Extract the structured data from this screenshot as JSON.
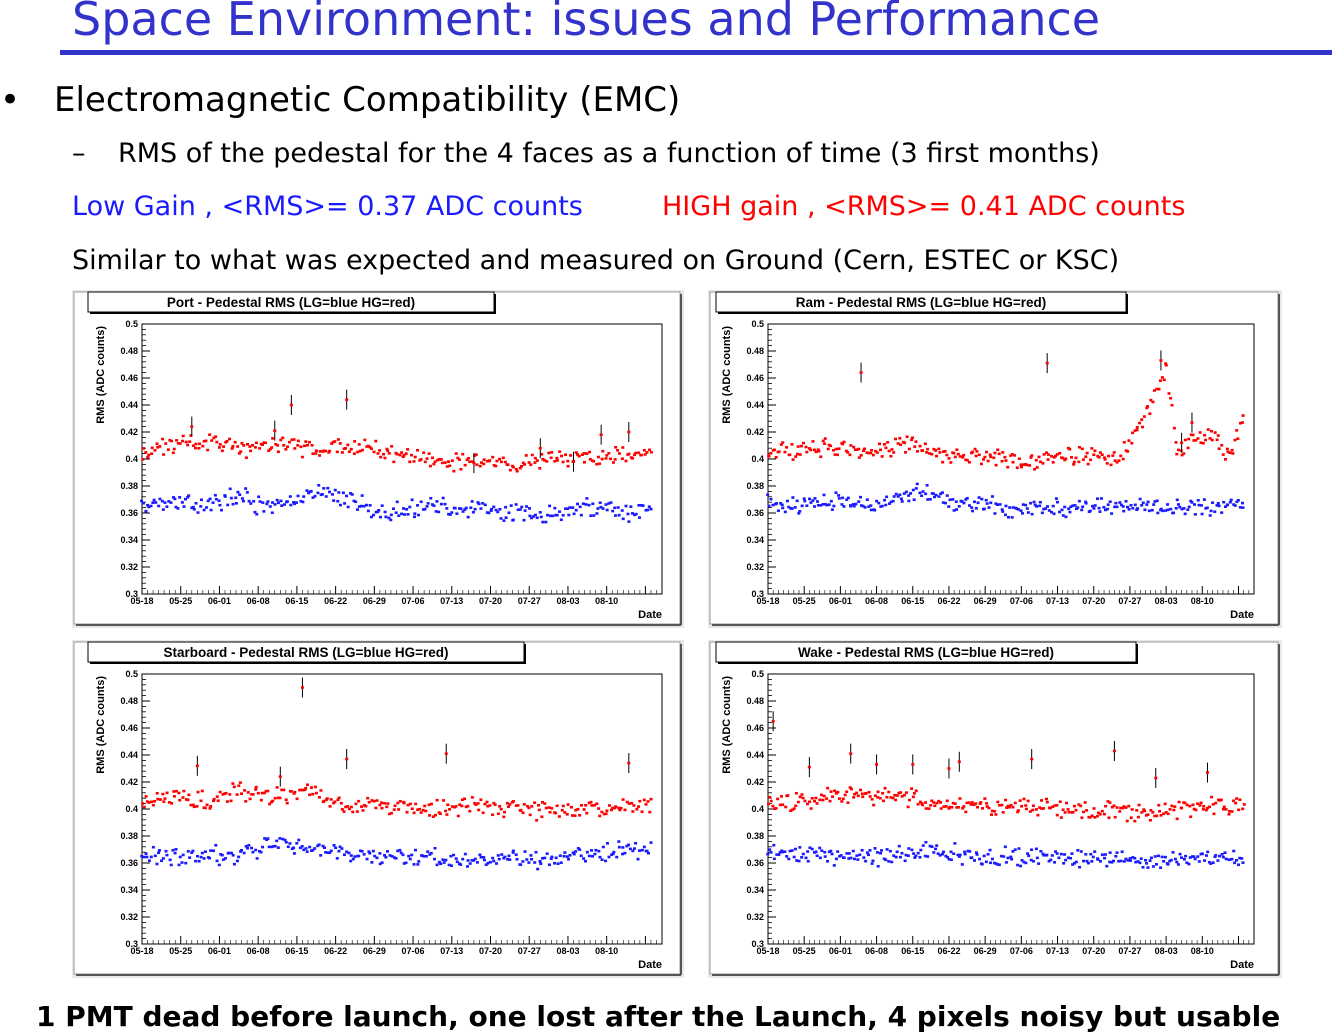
{
  "header": {
    "title": "Space Environment: issues and Performance",
    "bullet_heading": "Electromagnetic Compatibility (EMC)",
    "dash": "–",
    "subtitle": "RMS of the pedestal for the 4 faces as a function of time (3 first months)",
    "low_gain": "Low Gain , <RMS>= 0.37 ADC counts",
    "high_gain": "HIGH gain , <RMS>= 0.41 ADC counts",
    "similar": "Similar to what was expected and measured on Ground (Cern, ESTEC or KSC)"
  },
  "footer": "1 PMT dead before launch, one lost after the Launch, 4 pixels noisy but usable",
  "colors": {
    "title": "#3333cc",
    "low_gain": "#1a1aff",
    "high_gain": "#ff0000",
    "error_bar": "#000000"
  },
  "chart_data": [
    {
      "type": "scatter",
      "title": "Port - Pedestal RMS (LG=blue HG=red)",
      "xlabel": "Date",
      "ylabel": "RMS  (ADC counts)",
      "ylim": [
        0.3,
        0.5
      ],
      "y_ticks": [
        "0.3",
        "0.32",
        "0.34",
        "0.36",
        "0.38",
        "0.4",
        "0.42",
        "0.44",
        "0.46",
        "0.48",
        "0.5"
      ],
      "x_ticks": [
        "05-18",
        "05-25",
        "06-01",
        "06-08",
        "06-15",
        "06-22",
        "06-29",
        "07-06",
        "07-13",
        "07-20",
        "07-27",
        "08-03",
        "08-10"
      ],
      "series": [
        {
          "color": "#1a1aff",
          "anchors": [
            [
              0,
              0.366
            ],
            [
              5,
              0.368
            ],
            [
              10,
              0.365
            ],
            [
              15,
              0.37
            ],
            [
              18,
              0.373
            ],
            [
              22,
              0.362
            ],
            [
              27,
              0.368
            ],
            [
              32,
              0.376
            ],
            [
              38,
              0.369
            ],
            [
              44,
              0.358
            ],
            [
              52,
              0.367
            ],
            [
              58,
              0.362
            ],
            [
              66,
              0.361
            ],
            [
              72,
              0.359
            ],
            [
              78,
              0.362
            ],
            [
              83,
              0.366
            ],
            [
              88,
              0.358
            ],
            [
              92,
              0.368
            ]
          ]
        },
        {
          "color": "#ff0000",
          "anchors": [
            [
              0,
              0.406
            ],
            [
              8,
              0.412
            ],
            [
              15,
              0.411
            ],
            [
              20,
              0.408
            ],
            [
              26,
              0.41
            ],
            [
              32,
              0.407
            ],
            [
              38,
              0.409
            ],
            [
              44,
              0.405
            ],
            [
              50,
              0.402
            ],
            [
              56,
              0.397
            ],
            [
              62,
              0.399
            ],
            [
              68,
              0.396
            ],
            [
              74,
              0.401
            ],
            [
              80,
              0.401
            ],
            [
              86,
              0.403
            ],
            [
              92,
              0.404
            ]
          ]
        }
      ],
      "outliers": [
        [
          9,
          0.424
        ],
        [
          24,
          0.421
        ],
        [
          27,
          0.44
        ],
        [
          37,
          0.444
        ],
        [
          60,
          0.397
        ],
        [
          72,
          0.408
        ],
        [
          78,
          0.398
        ],
        [
          83,
          0.418
        ],
        [
          88,
          0.42
        ]
      ]
    },
    {
      "type": "scatter",
      "title": "Ram - Pedestal RMS (LG=blue HG=red)",
      "xlabel": "Date",
      "ylabel": "RMS  (ADC counts)",
      "ylim": [
        0.3,
        0.5
      ],
      "y_ticks": [
        "0.3",
        "0.32",
        "0.34",
        "0.36",
        "0.38",
        "0.4",
        "0.42",
        "0.44",
        "0.46",
        "0.48",
        "0.5"
      ],
      "x_ticks": [
        "05-18",
        "05-25",
        "06-01",
        "06-08",
        "06-15",
        "06-22",
        "06-29",
        "07-06",
        "07-13",
        "07-20",
        "07-27",
        "08-03",
        "08-10"
      ],
      "series": [
        {
          "color": "#1a1aff",
          "anchors": [
            [
              0,
              0.368
            ],
            [
              5,
              0.364
            ],
            [
              10,
              0.367
            ],
            [
              15,
              0.37
            ],
            [
              20,
              0.365
            ],
            [
              26,
              0.372
            ],
            [
              30,
              0.377
            ],
            [
              36,
              0.367
            ],
            [
              42,
              0.368
            ],
            [
              48,
              0.363
            ],
            [
              54,
              0.364
            ],
            [
              60,
              0.363
            ],
            [
              66,
              0.366
            ],
            [
              72,
              0.364
            ],
            [
              78,
              0.364
            ],
            [
              84,
              0.365
            ],
            [
              92,
              0.367
            ]
          ]
        },
        {
          "color": "#ff0000",
          "anchors": [
            [
              0,
              0.406
            ],
            [
              8,
              0.408
            ],
            [
              14,
              0.41
            ],
            [
              20,
              0.406
            ],
            [
              26,
              0.411
            ],
            [
              32,
              0.405
            ],
            [
              38,
              0.402
            ],
            [
              44,
              0.403
            ],
            [
              50,
              0.398
            ],
            [
              56,
              0.402
            ],
            [
              62,
              0.403
            ],
            [
              68,
              0.4
            ],
            [
              70,
              0.412
            ],
            [
              72,
              0.425
            ],
            [
              74,
              0.44
            ],
            [
              76,
              0.458
            ],
            [
              77,
              0.466
            ],
            [
              78,
              0.44
            ],
            [
              79,
              0.405
            ],
            [
              82,
              0.414
            ],
            [
              86,
              0.418
            ],
            [
              89,
              0.402
            ],
            [
              92,
              0.43
            ]
          ]
        }
      ],
      "outliers": [
        [
          18,
          0.464
        ],
        [
          54,
          0.471
        ],
        [
          76,
          0.473
        ],
        [
          80,
          0.412
        ],
        [
          82,
          0.427
        ]
      ]
    },
    {
      "type": "scatter",
      "title": "Starboard - Pedestal RMS (LG=blue HG=red)",
      "xlabel": "Date",
      "ylabel": "RMS (ADC counts)",
      "ylim": [
        0.3,
        0.5
      ],
      "y_ticks": [
        "0.3",
        "0.32",
        "0.34",
        "0.36",
        "0.38",
        "0.4",
        "0.42",
        "0.44",
        "0.46",
        "0.48",
        "0.5"
      ],
      "x_ticks": [
        "05-18",
        "05-25",
        "06-01",
        "06-08",
        "06-15",
        "06-22",
        "06-29",
        "07-06",
        "07-13",
        "07-20",
        "07-27",
        "08-03",
        "08-10"
      ],
      "series": [
        {
          "color": "#1a1aff",
          "anchors": [
            [
              0,
              0.367
            ],
            [
              6,
              0.364
            ],
            [
              12,
              0.366
            ],
            [
              17,
              0.365
            ],
            [
              22,
              0.372
            ],
            [
              28,
              0.374
            ],
            [
              33,
              0.37
            ],
            [
              38,
              0.364
            ],
            [
              44,
              0.366
            ],
            [
              50,
              0.365
            ],
            [
              56,
              0.362
            ],
            [
              62,
              0.363
            ],
            [
              68,
              0.364
            ],
            [
              72,
              0.36
            ],
            [
              78,
              0.366
            ],
            [
              84,
              0.368
            ],
            [
              92,
              0.37
            ]
          ]
        },
        {
          "color": "#ff0000",
          "anchors": [
            [
              0,
              0.405
            ],
            [
              6,
              0.409
            ],
            [
              12,
              0.406
            ],
            [
              18,
              0.413
            ],
            [
              24,
              0.41
            ],
            [
              30,
              0.412
            ],
            [
              36,
              0.405
            ],
            [
              42,
              0.403
            ],
            [
              48,
              0.403
            ],
            [
              54,
              0.4
            ],
            [
              60,
              0.402
            ],
            [
              66,
              0.401
            ],
            [
              72,
              0.398
            ],
            [
              78,
              0.399
            ],
            [
              84,
              0.402
            ],
            [
              92,
              0.402
            ]
          ]
        }
      ],
      "outliers": [
        [
          10,
          0.432
        ],
        [
          25,
          0.424
        ],
        [
          29,
          0.49
        ],
        [
          37,
          0.437
        ],
        [
          55,
          0.441
        ],
        [
          88,
          0.434
        ]
      ]
    },
    {
      "type": "scatter",
      "title": "Wake - Pedestal RMS (LG=blue HG=red)",
      "xlabel": "Date",
      "ylabel": "RMS  (ADC counts)",
      "ylim": [
        0.3,
        0.5
      ],
      "y_ticks": [
        "0.3",
        "0.32",
        "0.34",
        "0.36",
        "0.38",
        "0.4",
        "0.42",
        "0.44",
        "0.46",
        "0.48",
        "0.5"
      ],
      "x_ticks": [
        "05-18",
        "05-25",
        "06-01",
        "06-08",
        "06-15",
        "06-22",
        "06-29",
        "07-06",
        "07-13",
        "07-20",
        "07-27",
        "08-03",
        "08-10"
      ],
      "series": [
        {
          "color": "#1a1aff",
          "anchors": [
            [
              0,
              0.366
            ],
            [
              6,
              0.366
            ],
            [
              12,
              0.364
            ],
            [
              18,
              0.366
            ],
            [
              24,
              0.364
            ],
            [
              30,
              0.37
            ],
            [
              36,
              0.367
            ],
            [
              42,
              0.363
            ],
            [
              48,
              0.365
            ],
            [
              54,
              0.364
            ],
            [
              60,
              0.362
            ],
            [
              66,
              0.363
            ],
            [
              72,
              0.36
            ],
            [
              78,
              0.363
            ],
            [
              84,
              0.364
            ],
            [
              92,
              0.363
            ]
          ]
        },
        {
          "color": "#ff0000",
          "anchors": [
            [
              0,
              0.402
            ],
            [
              6,
              0.406
            ],
            [
              12,
              0.409
            ],
            [
              18,
              0.41
            ],
            [
              24,
              0.41
            ],
            [
              30,
              0.406
            ],
            [
              36,
              0.403
            ],
            [
              42,
              0.401
            ],
            [
              48,
              0.402
            ],
            [
              54,
              0.401
            ],
            [
              60,
              0.4
            ],
            [
              66,
              0.398
            ],
            [
              72,
              0.397
            ],
            [
              78,
              0.399
            ],
            [
              84,
              0.402
            ],
            [
              92,
              0.402
            ]
          ]
        }
      ],
      "outliers": [
        [
          1,
          0.465
        ],
        [
          8,
          0.431
        ],
        [
          16,
          0.441
        ],
        [
          21,
          0.433
        ],
        [
          28,
          0.433
        ],
        [
          35,
          0.43
        ],
        [
          37,
          0.435
        ],
        [
          51,
          0.437
        ],
        [
          67,
          0.443
        ],
        [
          75,
          0.423
        ],
        [
          85,
          0.427
        ]
      ]
    }
  ]
}
